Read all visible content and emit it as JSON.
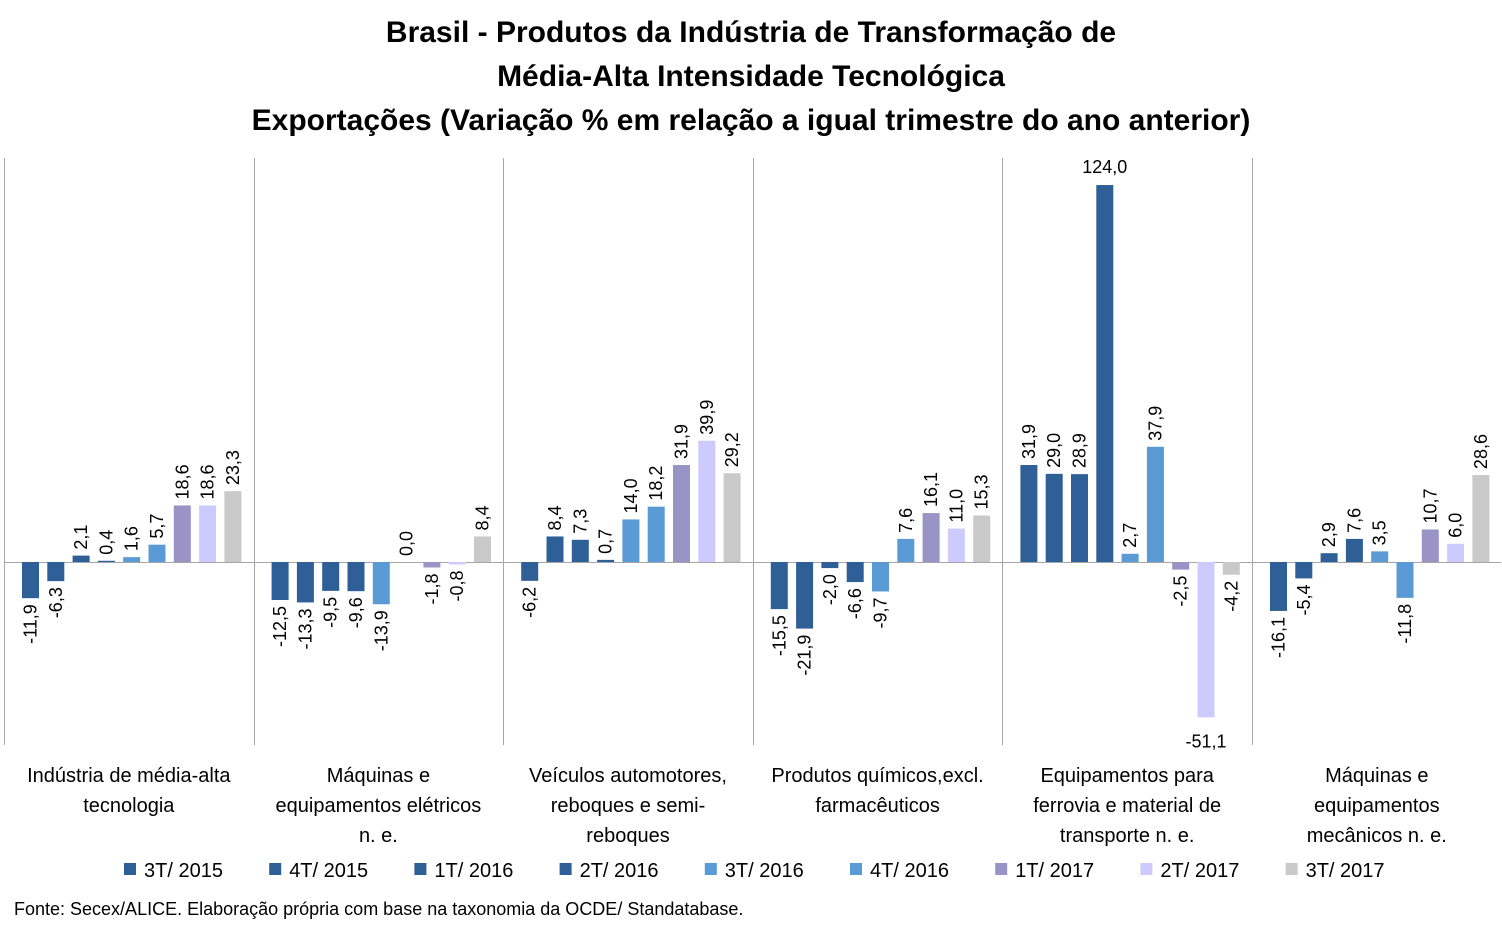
{
  "chart_data": {
    "type": "bar",
    "title": [
      "Brasil - Produtos da Indústria de Transformação de",
      "Média-Alta Intensidade Tecnológica",
      "Exportações (Variação % em relação a igual trimestre do ano anterior)"
    ],
    "categories": [
      [
        "Indústria de média-alta",
        "tecnologia"
      ],
      [
        "Máquinas e",
        "equipamentos elétricos",
        "n. e."
      ],
      [
        "Veículos automotores,",
        "reboques e semi-",
        "reboques"
      ],
      [
        "Produtos químicos,excl.",
        "farmacêuticos"
      ],
      [
        "Equipamentos para",
        "ferrovia e material de",
        "transporte n. e."
      ],
      [
        "Máquinas e",
        "equipamentos",
        "mecânicos  n. e."
      ]
    ],
    "series": [
      {
        "name": "3T/ 2015",
        "color": "#2E5F97",
        "values": [
          -11.9,
          -12.5,
          -6.2,
          -15.5,
          31.9,
          -16.1
        ],
        "labels": [
          "-11,9",
          "-12,5",
          "-6,2",
          "-15,5",
          "31,9",
          "-16,1"
        ]
      },
      {
        "name": "4T/ 2015",
        "color": "#2E5F97",
        "values": [
          -6.3,
          -13.3,
          8.4,
          -21.9,
          29.0,
          -5.4
        ],
        "labels": [
          "-6,3",
          "-13,3",
          "8,4",
          "-21,9",
          "29,0",
          "-5,4"
        ]
      },
      {
        "name": "1T/ 2016",
        "color": "#2E5F97",
        "values": [
          2.1,
          -9.5,
          7.3,
          -2.0,
          28.9,
          2.9
        ],
        "labels": [
          "2,1",
          "-9,5",
          "7,3",
          "-2,0",
          "28,9",
          "2,9"
        ]
      },
      {
        "name": "2T/ 2016",
        "color": "#2E5F97",
        "values": [
          0.4,
          -9.6,
          0.7,
          -6.6,
          124.0,
          7.6
        ],
        "labels": [
          "0,4",
          "-9,6",
          "0,7",
          "-6,6",
          "124,0",
          "7,6"
        ]
      },
      {
        "name": "3T/ 2016",
        "color": "#5B9BD5",
        "values": [
          1.6,
          -13.9,
          14.0,
          -9.7,
          2.7,
          3.5
        ],
        "labels": [
          "1,6",
          "-13,9",
          "14,0",
          "-9,7",
          "2,7",
          "3,5"
        ]
      },
      {
        "name": "4T/ 2016",
        "color": "#5B9BD5",
        "values": [
          5.7,
          0.0,
          18.2,
          7.6,
          37.9,
          -11.8
        ],
        "labels": [
          "5,7",
          "0,0",
          "18,2",
          "7,6",
          "37,9",
          "-11,8"
        ]
      },
      {
        "name": "1T/ 2017",
        "color": "#9A93C6",
        "values": [
          18.6,
          -1.8,
          31.9,
          16.1,
          -2.5,
          10.7
        ],
        "labels": [
          "18,6",
          "-1,8",
          "31,9",
          "16,1",
          "-2,5",
          "10,7"
        ]
      },
      {
        "name": "2T/ 2017",
        "color": "#CDCBFD",
        "values": [
          18.6,
          -0.8,
          39.9,
          11.0,
          -51.1,
          6.0
        ],
        "labels": [
          "18,6",
          "-0,8",
          "39,9",
          "11,0",
          "-51,1",
          "6,0"
        ]
      },
      {
        "name": "3T/ 2017",
        "color": "#C9C9C9",
        "values": [
          23.3,
          8.4,
          29.2,
          15.3,
          -4.2,
          28.6
        ],
        "labels": [
          "23,3",
          "8,4",
          "29,2",
          "15,3",
          "-4,2",
          "28,6"
        ]
      }
    ],
    "ylim": [
      -59,
      133
    ],
    "grid": false,
    "legend_position": "bottom",
    "data_labels": true
  },
  "source_note": "Fonte: Secex/ALICE. Elaboração própria com base na taxonomia da OCDE/ Standatabase."
}
